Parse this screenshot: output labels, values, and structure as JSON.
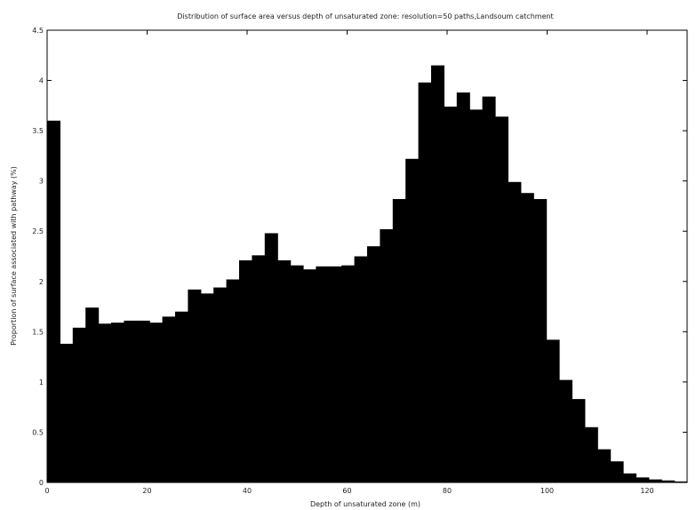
{
  "chart_data": {
    "type": "bar",
    "title": "Distribution of surface area versus depth of unsaturated zone: resolution=50 paths,Landsoum catchment",
    "xlabel": "Depth of unsaturated zone (m)",
    "ylabel": "Proportion of surface associated with pathway (%)",
    "xlim": [
      0,
      128
    ],
    "ylim": [
      0,
      4.5
    ],
    "xticks": [
      0,
      20,
      40,
      60,
      80,
      100,
      120
    ],
    "xtick_labels": [
      "0",
      "20",
      "40",
      "60",
      "80",
      "100",
      "120"
    ],
    "yticks": [
      0,
      0.5,
      1,
      1.5,
      2,
      2.5,
      3,
      3.5,
      4,
      4.5
    ],
    "ytick_labels": [
      "0",
      "0.5",
      "1",
      "1.5",
      "2",
      "2.5",
      "3",
      "3.5",
      "4",
      "4.5"
    ],
    "bin_width": 2.56,
    "x": [
      1.28,
      3.84,
      6.4,
      8.96,
      11.52,
      14.08,
      16.64,
      19.2,
      21.76,
      24.32,
      26.88,
      29.44,
      32.0,
      34.56,
      37.12,
      39.68,
      42.24,
      44.8,
      47.36,
      49.92,
      52.48,
      55.04,
      57.6,
      60.16,
      62.72,
      65.28,
      67.84,
      70.4,
      72.96,
      75.52,
      78.08,
      80.64,
      83.2,
      85.76,
      88.32,
      90.88,
      93.44,
      96.0,
      98.56,
      101.12,
      103.68,
      106.24,
      108.8,
      111.36,
      113.92,
      116.48,
      119.04,
      121.6,
      124.16,
      126.72
    ],
    "values": [
      3.6,
      1.38,
      1.54,
      1.74,
      1.58,
      1.59,
      1.61,
      1.61,
      1.59,
      1.65,
      1.7,
      1.92,
      1.88,
      1.94,
      2.02,
      2.21,
      2.26,
      2.48,
      2.21,
      2.16,
      2.12,
      2.15,
      2.15,
      2.16,
      2.25,
      2.35,
      2.52,
      2.82,
      3.22,
      3.98,
      4.15,
      3.74,
      3.88,
      3.71,
      3.84,
      3.64,
      2.99,
      2.88,
      2.82,
      1.42,
      1.02,
      0.83,
      0.55,
      0.33,
      0.21,
      0.09,
      0.05,
      0.03,
      0.02,
      0.01
    ],
    "bar_color": "#000000",
    "grid": false,
    "legend": "none"
  }
}
